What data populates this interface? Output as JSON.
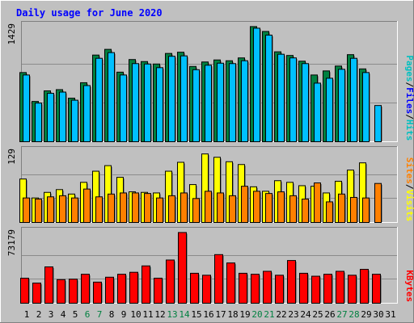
{
  "chart_data": {
    "type": "bar",
    "title": "Daily usage for June 2020",
    "categories": [
      "1",
      "2",
      "3",
      "4",
      "5",
      "6",
      "7",
      "8",
      "9",
      "10",
      "11",
      "12",
      "13",
      "14",
      "15",
      "16",
      "17",
      "18",
      "19",
      "20",
      "21",
      "22",
      "23",
      "24",
      "25",
      "26",
      "27",
      "28",
      "29",
      "30",
      "31"
    ],
    "weekend_days": [
      "6",
      "7",
      "13",
      "14",
      "20",
      "21",
      "27",
      "28"
    ],
    "panels": [
      {
        "name": "hits-pages-files",
        "ymax_label": "1429",
        "ymax": 1429,
        "legend": [
          "Pages",
          "/",
          "Files",
          "/",
          "Hits"
        ],
        "legend_colors": [
          "#00c0c0",
          "#000000",
          "#0000ff",
          "#000000",
          "#00c0c0"
        ],
        "series": [
          {
            "name": "Hits",
            "color": "#008040",
            "values": [
              850,
              495,
              625,
              640,
              535,
              725,
              1065,
              1135,
              855,
              1010,
              985,
              955,
              1085,
              1100,
              925,
              980,
              1005,
              995,
              1030,
              1415,
              1355,
              1105,
              1060,
              990,
              820,
              870,
              930,
              1070,
              895,
              0
            ]
          },
          {
            "name": "Files",
            "color": "#00c0ff",
            "values": [
              820,
              475,
              595,
              610,
              510,
              690,
              1025,
              1095,
              820,
              960,
              955,
              910,
              1050,
              1055,
              885,
              940,
              965,
              960,
              995,
              1395,
              1310,
              1075,
              1030,
              960,
              720,
              780,
              890,
              1025,
              850,
              445
            ]
          },
          {
            "name": "Pages",
            "color": "#00ffff",
            "values": []
          }
        ]
      },
      {
        "name": "visits-sites",
        "ymax_label": "129",
        "ymax": 129,
        "legend": [
          "Sites",
          "/",
          "Visits"
        ],
        "legend_colors": [
          "#ff8000",
          "#000000",
          "#ffff00"
        ],
        "series": [
          {
            "name": "Visits",
            "color": "#ffff00",
            "values": [
              78,
              44,
              54,
              59,
              51,
              72,
              92,
              102,
              81,
              55,
              54,
              53,
              92,
              108,
              68,
              123,
              117,
              109,
              104,
              64,
              56,
              75,
              72,
              66,
              65,
              53,
              74,
              94,
              107,
              0
            ]
          },
          {
            "name": "Sites",
            "color": "#ff8000",
            "values": [
              44,
              42,
              46,
              48,
              44,
              60,
              46,
              51,
              53,
              53,
              52,
              44,
              48,
              53,
              43,
              56,
              53,
              48,
              65,
              56,
              52,
              55,
              48,
              42,
              71,
              37,
              51,
              45,
              44,
              70
            ]
          }
        ]
      },
      {
        "name": "kbytes",
        "ymax_label": "73179",
        "ymax": 73179,
        "legend": [
          "KBytes"
        ],
        "legend_colors": [
          "#ff0000"
        ],
        "series": [
          {
            "name": "KBytes",
            "color": "#ff0000",
            "values": [
              25500,
              20500,
              37000,
              24000,
              24500,
              29500,
              21500,
              26500,
              29500,
              31500,
              38000,
              25500,
              44000,
              72000,
              30500,
              28500,
              49500,
              41000,
              30500,
              29500,
              32500,
              28500,
              43500,
              30500,
              27500,
              29500,
              32500,
              28500,
              34500,
              29500
            ]
          }
        ]
      }
    ]
  },
  "colors": {
    "background": "#c0c0c0",
    "title": "#0000ff",
    "weekend_label": "#008040",
    "weekday_label": "#000000",
    "bar_outline": "#000000"
  }
}
